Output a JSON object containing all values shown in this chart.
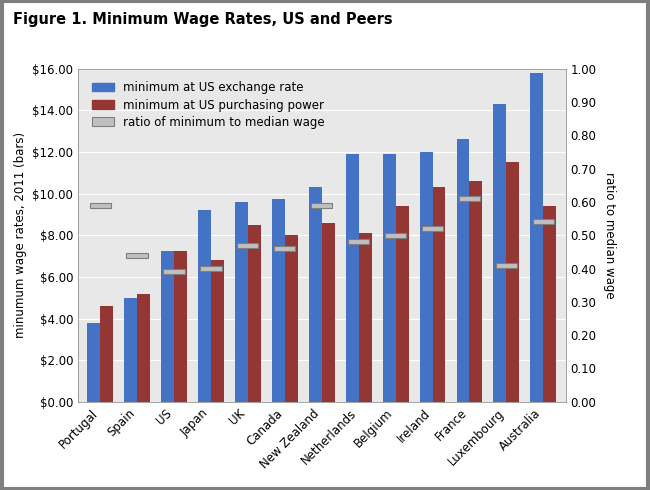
{
  "title": "Figure 1. Minimum Wage Rates, US and Peers",
  "categories": [
    "Portugal",
    "Spain",
    "US",
    "Japan",
    "UK",
    "Canada",
    "New Zealand",
    "Netherlands",
    "Belgium",
    "Ireland",
    "France",
    "Luxembourg",
    "Australia"
  ],
  "exchange_rate": [
    3.8,
    5.0,
    7.25,
    9.2,
    9.6,
    9.75,
    10.3,
    11.9,
    11.9,
    12.0,
    12.6,
    14.3,
    15.8
  ],
  "purchasing_power": [
    4.6,
    5.2,
    7.25,
    6.8,
    8.5,
    8.0,
    8.6,
    8.1,
    9.4,
    10.3,
    10.6,
    11.5,
    9.4
  ],
  "ratio": [
    0.59,
    0.44,
    0.39,
    0.4,
    0.47,
    0.46,
    0.59,
    0.48,
    0.5,
    0.52,
    0.61,
    0.41,
    0.54
  ],
  "bar_color_blue": "#4472C4",
  "bar_color_red": "#943634",
  "ratio_color": "#BFBFBF",
  "ratio_edge_color": "#7F7F7F",
  "ylabel_left": "minumum wage rates, 2011 (bars)",
  "ylabel_right": "ratio to median wage",
  "ylim_left": [
    0,
    16
  ],
  "ylim_right": [
    0,
    1.0
  ],
  "yticks_left": [
    0,
    2,
    4,
    6,
    8,
    10,
    12,
    14,
    16
  ],
  "yticks_right": [
    0.0,
    0.1,
    0.2,
    0.3,
    0.4,
    0.5,
    0.6,
    0.7,
    0.8,
    0.9,
    1.0
  ],
  "fig_bg_color": "#FFFFFF",
  "plot_bg_color": "#E8E8E8",
  "grid_color": "#FFFFFF",
  "border_color": "#7F7F7F",
  "legend_exchange": "minimum at US exchange rate",
  "legend_purchasing": "minimum at US purchasing power",
  "legend_ratio": "ratio of minimum to median wage"
}
